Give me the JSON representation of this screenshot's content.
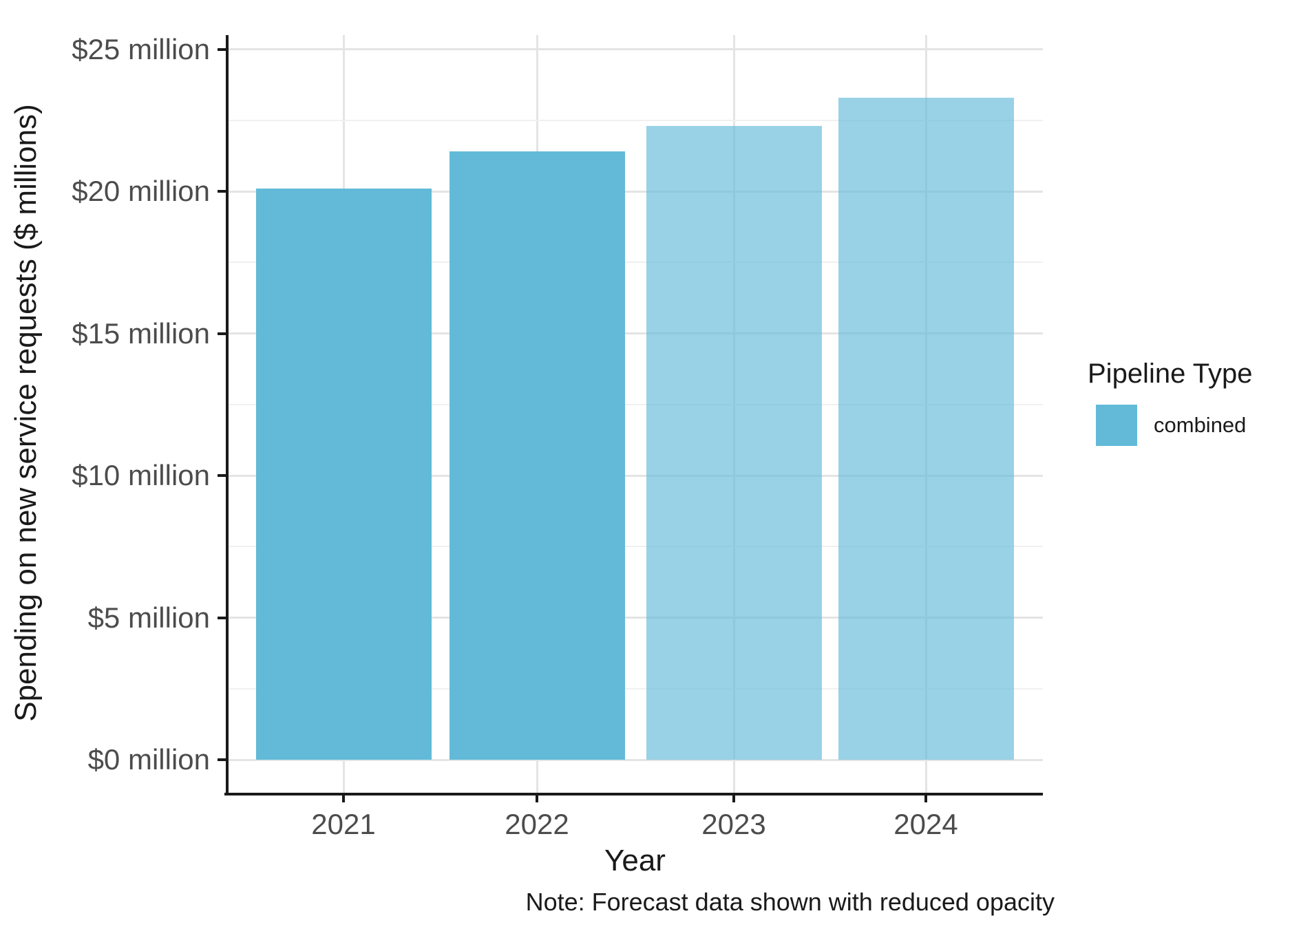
{
  "chart_data": {
    "type": "bar",
    "title": "",
    "categories": [
      "2021",
      "2022",
      "2023",
      "2024"
    ],
    "series": [
      {
        "name": "combined",
        "values": [
          20.1,
          21.4,
          22.3,
          23.3
        ],
        "forecast": [
          false,
          false,
          true,
          true
        ]
      }
    ],
    "xlabel": "Year",
    "ylabel": "Spending on new service requests ($ millions)",
    "ylim": [
      0,
      25
    ],
    "y_ticks": [
      {
        "value": 0,
        "label": "$0 million"
      },
      {
        "value": 5,
        "label": "$5 million"
      },
      {
        "value": 10,
        "label": "$10 million"
      },
      {
        "value": 15,
        "label": "$15 million"
      },
      {
        "value": 20,
        "label": "$20 million"
      },
      {
        "value": 25,
        "label": "$25 million"
      }
    ],
    "y_minor_ticks": [
      2.5,
      7.5,
      12.5,
      17.5,
      22.5
    ],
    "grid": true,
    "legend": {
      "position": "right",
      "title": "Pipeline Type",
      "entries": [
        {
          "label": "combined",
          "color": "#62BAD8"
        }
      ]
    },
    "note": "Note: Forecast data shown with reduced opacity",
    "forecast_opacity": 0.65,
    "colors": {
      "bar": "#62BAD8",
      "grid_major": "#E4E4E4",
      "grid_minor": "#F0F0F0",
      "axis": "#1A1A1A",
      "tick_label": "#4C4C4C",
      "text": "#1A1A1A"
    }
  }
}
